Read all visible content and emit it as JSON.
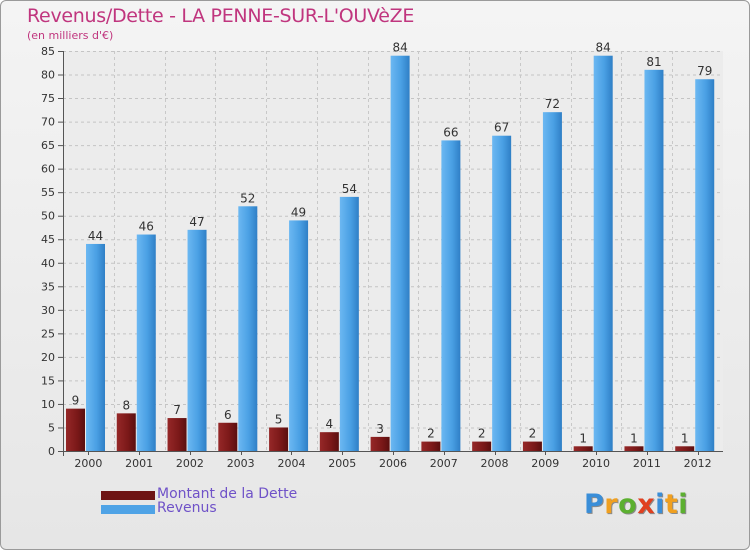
{
  "chart_data": {
    "type": "bar",
    "title": "Revenus/Dette - LA PENNE-SUR-L'OUVèZE",
    "subtitle": "(en milliers d'€)",
    "categories": [
      "2000",
      "2001",
      "2002",
      "2003",
      "2004",
      "2005",
      "2006",
      "2007",
      "2008",
      "2009",
      "2010",
      "2011",
      "2012"
    ],
    "series": [
      {
        "name": "Montant de la Dette",
        "color": "#7d1a1a",
        "values": [
          9,
          8,
          7,
          6,
          5,
          4,
          3,
          2,
          2,
          2,
          1,
          1,
          1
        ]
      },
      {
        "name": "Revenus",
        "color": "#4fa3e6",
        "values": [
          44,
          46,
          47,
          52,
          49,
          54,
          84,
          66,
          67,
          72,
          84,
          81,
          79
        ]
      }
    ],
    "ylim": [
      0,
      85
    ],
    "yticks": [
      0,
      5,
      10,
      15,
      20,
      25,
      30,
      35,
      40,
      45,
      50,
      55,
      60,
      65,
      70,
      75,
      80,
      85
    ],
    "grid": true,
    "legend_position": "bottom-left"
  },
  "logo": {
    "letters": [
      "P",
      "r",
      "o",
      "x",
      "i",
      "t",
      "i"
    ],
    "colors": [
      "#3a8ed8",
      "#f0a020",
      "#5cb030",
      "#e04020",
      "#3a8ed8",
      "#f0a020",
      "#5cb030"
    ]
  }
}
